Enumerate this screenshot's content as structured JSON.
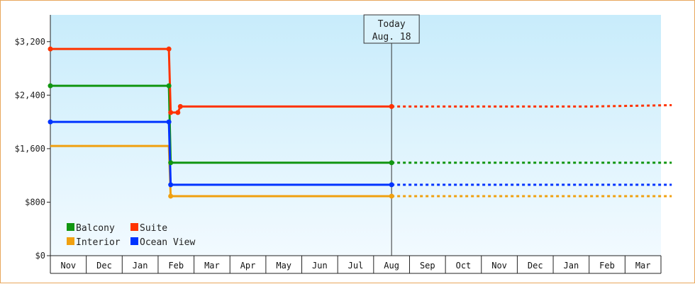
{
  "chart_data": {
    "type": "line",
    "title": "",
    "xlabel": "",
    "ylabel": "",
    "ylim": [
      0,
      3600
    ],
    "y_ticks": [
      0,
      800,
      1600,
      2400,
      3200
    ],
    "y_tick_labels": [
      "$0",
      "$800",
      "$1,600",
      "$2,400",
      "$3,200"
    ],
    "months": [
      "Nov",
      "Dec",
      "Jan",
      "Feb",
      "Mar",
      "Apr",
      "May",
      "Jun",
      "Jul",
      "Aug",
      "Sep",
      "Oct",
      "Nov",
      "Dec",
      "Jan",
      "Feb",
      "Mar"
    ],
    "grid": false,
    "legend_position": "bottom-left",
    "today_marker": {
      "line1": "Today",
      "line2": "Aug. 18",
      "x": 9.5
    },
    "series": [
      {
        "name": "Balcony",
        "color": "#119611",
        "points": [
          [
            0.0,
            2540
          ],
          [
            3.3,
            2540
          ],
          [
            3.35,
            1390
          ],
          [
            9.5,
            1390
          ]
        ],
        "projection": [
          [
            9.5,
            1390
          ],
          [
            17.3,
            1390
          ]
        ]
      },
      {
        "name": "Suite",
        "color": "#ff3300",
        "points": [
          [
            0.0,
            3090
          ],
          [
            3.3,
            3090
          ],
          [
            3.35,
            2140
          ],
          [
            3.55,
            2140
          ],
          [
            3.62,
            2230
          ],
          [
            9.5,
            2230
          ]
        ],
        "projection": [
          [
            9.5,
            2230
          ],
          [
            15.0,
            2230
          ],
          [
            17.3,
            2250
          ]
        ]
      },
      {
        "name": "Interior",
        "color": "#f0a010",
        "points": [
          [
            0.0,
            1640
          ],
          [
            3.3,
            1640
          ],
          [
            3.35,
            890
          ],
          [
            9.5,
            890
          ]
        ],
        "projection": [
          [
            9.5,
            890
          ],
          [
            17.3,
            890
          ]
        ]
      },
      {
        "name": "Ocean View",
        "color": "#0033ff",
        "points": [
          [
            0.0,
            2000
          ],
          [
            3.3,
            2000
          ],
          [
            3.35,
            1060
          ],
          [
            9.5,
            1060
          ]
        ],
        "projection": [
          [
            9.5,
            1060
          ],
          [
            17.3,
            1060
          ]
        ]
      }
    ],
    "marker_points": {
      "Balcony": [
        [
          0.0,
          2540
        ],
        [
          3.3,
          2540
        ],
        [
          3.35,
          1390
        ],
        [
          9.5,
          1390
        ]
      ],
      "Suite": [
        [
          0.0,
          3090
        ],
        [
          3.3,
          3090
        ],
        [
          3.35,
          2140
        ],
        [
          3.55,
          2140
        ],
        [
          3.62,
          2230
        ],
        [
          9.5,
          2230
        ]
      ],
      "Interior": [
        [
          3.35,
          890
        ],
        [
          9.5,
          890
        ]
      ],
      "Ocean View": [
        [
          0.0,
          2000
        ],
        [
          3.3,
          2000
        ],
        [
          3.35,
          1060
        ],
        [
          9.5,
          1060
        ]
      ]
    },
    "legend": [
      {
        "name": "Balcony",
        "color": "#119611"
      },
      {
        "name": "Suite",
        "color": "#ff3300"
      },
      {
        "name": "Interior",
        "color": "#f0a010"
      },
      {
        "name": "Ocean View",
        "color": "#0033ff"
      }
    ],
    "background_gradient": [
      "#c8ecfb",
      "#f2faff"
    ]
  }
}
